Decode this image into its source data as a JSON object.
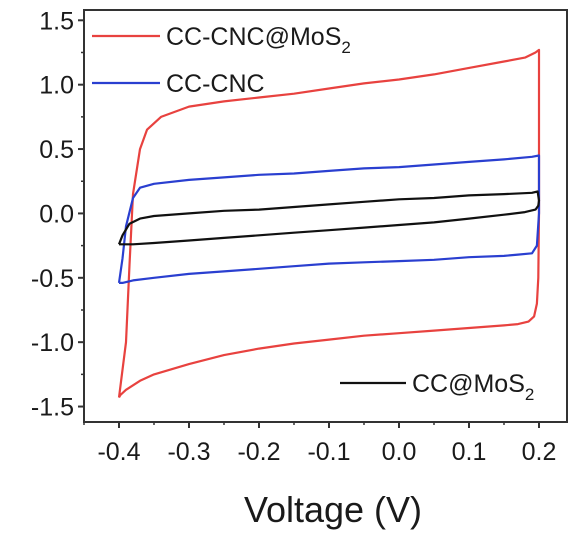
{
  "chart_data": {
    "type": "line",
    "xlabel": "Voltage (V)",
    "ylabel": "",
    "xlim": [
      -0.45,
      0.24
    ],
    "ylim": [
      -1.62,
      1.58
    ],
    "x_ticks": [
      "-0.4",
      "-0.3",
      "-0.2",
      "-0.1",
      "0.0",
      "0.1",
      "0.2"
    ],
    "y_ticks": [
      "1.5",
      "1.0",
      "0.5",
      "0.0",
      "-0.5",
      "-1.0",
      "-1.5"
    ],
    "grid": false,
    "legend": [
      {
        "label": "CC-CNC@MoS",
        "subscript": "2",
        "color": "#e8423f",
        "placement": "top-left"
      },
      {
        "label": "CC-CNC",
        "subscript": "",
        "color": "#2a3fd0",
        "placement": "top-left"
      },
      {
        "label": "CC@MoS",
        "subscript": "2",
        "color": "#111111",
        "placement": "bottom-right"
      }
    ],
    "series": [
      {
        "name": "CC-CNC@MoS2",
        "color": "#e8423f",
        "x": [
          -0.4,
          -0.39,
          -0.385,
          -0.38,
          -0.37,
          -0.36,
          -0.34,
          -0.3,
          -0.25,
          -0.2,
          -0.15,
          -0.1,
          -0.05,
          0.0,
          0.05,
          0.1,
          0.15,
          0.18,
          0.195,
          0.2,
          0.2,
          0.199,
          0.197,
          0.193,
          0.185,
          0.17,
          0.15,
          0.1,
          0.05,
          0.0,
          -0.05,
          -0.1,
          -0.15,
          -0.2,
          -0.25,
          -0.3,
          -0.35,
          -0.37,
          -0.39,
          -0.398,
          -0.4
        ],
        "y": [
          -1.43,
          -1.0,
          -0.4,
          0.15,
          0.5,
          0.65,
          0.75,
          0.83,
          0.87,
          0.9,
          0.93,
          0.97,
          1.01,
          1.04,
          1.08,
          1.13,
          1.18,
          1.21,
          1.25,
          1.27,
          0.0,
          -0.5,
          -0.7,
          -0.8,
          -0.84,
          -0.86,
          -0.87,
          -0.89,
          -0.91,
          -0.93,
          -0.95,
          -0.98,
          -1.01,
          -1.05,
          -1.1,
          -1.17,
          -1.25,
          -1.3,
          -1.37,
          -1.41,
          -1.43
        ]
      },
      {
        "name": "CC-CNC",
        "color": "#2a3fd0",
        "x": [
          -0.4,
          -0.395,
          -0.39,
          -0.38,
          -0.37,
          -0.35,
          -0.3,
          -0.25,
          -0.2,
          -0.15,
          -0.1,
          -0.05,
          0.0,
          0.05,
          0.1,
          0.15,
          0.19,
          0.2,
          0.2,
          0.197,
          0.19,
          0.17,
          0.15,
          0.1,
          0.05,
          0.0,
          -0.05,
          -0.1,
          -0.15,
          -0.2,
          -0.25,
          -0.3,
          -0.35,
          -0.38,
          -0.395,
          -0.4
        ],
        "y": [
          -0.54,
          -0.35,
          -0.1,
          0.12,
          0.2,
          0.23,
          0.26,
          0.28,
          0.3,
          0.31,
          0.33,
          0.35,
          0.36,
          0.38,
          0.4,
          0.42,
          0.44,
          0.45,
          0.0,
          -0.25,
          -0.31,
          -0.32,
          -0.33,
          -0.34,
          -0.36,
          -0.37,
          -0.38,
          -0.39,
          -0.41,
          -0.43,
          -0.45,
          -0.47,
          -0.5,
          -0.52,
          -0.54,
          -0.54
        ]
      },
      {
        "name": "CC@MoS2",
        "color": "#111111",
        "x": [
          -0.4,
          -0.395,
          -0.385,
          -0.37,
          -0.35,
          -0.3,
          -0.25,
          -0.2,
          -0.15,
          -0.1,
          -0.05,
          0.0,
          0.05,
          0.1,
          0.15,
          0.19,
          0.198,
          0.2,
          0.199,
          0.195,
          0.18,
          0.15,
          0.1,
          0.05,
          0.0,
          -0.05,
          -0.1,
          -0.15,
          -0.2,
          -0.25,
          -0.3,
          -0.35,
          -0.38,
          -0.395,
          -0.4
        ],
        "y": [
          -0.24,
          -0.17,
          -0.08,
          -0.04,
          -0.02,
          0.0,
          0.02,
          0.03,
          0.05,
          0.07,
          0.09,
          0.11,
          0.12,
          0.14,
          0.15,
          0.16,
          0.17,
          0.1,
          0.06,
          0.03,
          0.01,
          -0.01,
          -0.04,
          -0.07,
          -0.09,
          -0.11,
          -0.13,
          -0.15,
          -0.17,
          -0.19,
          -0.21,
          -0.23,
          -0.24,
          -0.24,
          -0.24
        ]
      }
    ]
  }
}
